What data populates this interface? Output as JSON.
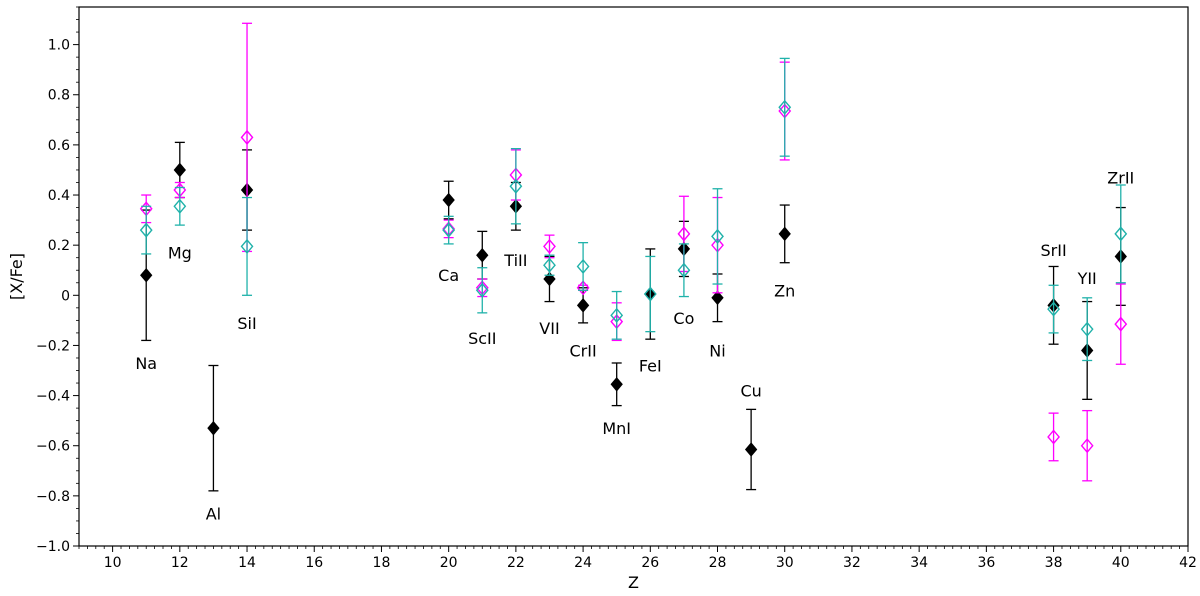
{
  "chart_data": {
    "type": "scatter",
    "title": "",
    "xlabel": "Z",
    "ylabel": "[X/Fe]",
    "xlim": [
      9,
      42
    ],
    "ylim": [
      -1.0,
      1.15
    ],
    "xticks": [
      10,
      12,
      14,
      16,
      18,
      20,
      22,
      24,
      26,
      28,
      30,
      32,
      34,
      36,
      38,
      40,
      42
    ],
    "yticks": [
      -1.0,
      -0.8,
      -0.6,
      -0.4,
      -0.2,
      0,
      0.2,
      0.4,
      0.6,
      0.8,
      1.0
    ],
    "ytick_labels": [
      "−1.0",
      "−0.8",
      "−0.6",
      "−0.4",
      "−0.2",
      "0",
      "0.2",
      "0.4",
      "0.6",
      "0.8",
      "1.0"
    ],
    "grid": false,
    "series": [
      {
        "marker": "filled-diamond",
        "color": "#000000",
        "points": [
          {
            "x": 11,
            "y": 0.08,
            "err": 0.26
          },
          {
            "x": 12,
            "y": 0.5,
            "err": 0.11
          },
          {
            "x": 13,
            "y": -0.53,
            "err": 0.25
          },
          {
            "x": 14,
            "y": 0.42,
            "err": 0.16
          },
          {
            "x": 20,
            "y": 0.38,
            "err": 0.075
          },
          {
            "x": 21,
            "y": 0.16,
            "err": 0.095
          },
          {
            "x": 22,
            "y": 0.355,
            "err": 0.095
          },
          {
            "x": 23,
            "y": 0.065,
            "err": 0.09
          },
          {
            "x": 24,
            "y": -0.04,
            "err": 0.07
          },
          {
            "x": 25,
            "y": -0.355,
            "err": 0.085
          },
          {
            "x": 26,
            "y": 0.005,
            "err": 0.18
          },
          {
            "x": 27,
            "y": 0.185,
            "err": 0.11
          },
          {
            "x": 28,
            "y": -0.01,
            "err": 0.095
          },
          {
            "x": 29,
            "y": -0.615,
            "err": 0.16
          },
          {
            "x": 30,
            "y": 0.245,
            "err": 0.115
          },
          {
            "x": 38,
            "y": -0.04,
            "err": 0.155
          },
          {
            "x": 39,
            "y": -0.22,
            "err": 0.195
          },
          {
            "x": 40,
            "y": 0.155,
            "err": 0.195
          }
        ]
      },
      {
        "marker": "open-diamond",
        "color": "#ff00ff",
        "points": [
          {
            "x": 11,
            "y": 0.345,
            "err": 0.055
          },
          {
            "x": 12,
            "y": 0.42,
            "err": 0.03
          },
          {
            "x": 14,
            "y": 0.63,
            "err": 0.455
          },
          {
            "x": 20,
            "y": 0.265,
            "err": 0.035
          },
          {
            "x": 21,
            "y": 0.03,
            "err": 0.035
          },
          {
            "x": 22,
            "y": 0.48,
            "err": 0.1
          },
          {
            "x": 23,
            "y": 0.195,
            "err": 0.045
          },
          {
            "x": 24,
            "y": 0.03,
            "err": 0.01
          },
          {
            "x": 25,
            "y": -0.105,
            "err": 0.075
          },
          {
            "x": 27,
            "y": 0.245,
            "err": 0.15
          },
          {
            "x": 28,
            "y": 0.2,
            "err": 0.19
          },
          {
            "x": 30,
            "y": 0.735,
            "err": 0.195
          },
          {
            "x": 38,
            "y": -0.565,
            "err": 0.095
          },
          {
            "x": 39,
            "y": -0.6,
            "err": 0.14
          },
          {
            "x": 40,
            "y": -0.115,
            "err": 0.16
          }
        ]
      },
      {
        "marker": "open-diamond",
        "color": "#20b2aa",
        "points": [
          {
            "x": 11,
            "y": 0.26,
            "err": 0.095
          },
          {
            "x": 12,
            "y": 0.355,
            "err": 0.075
          },
          {
            "x": 14,
            "y": 0.195,
            "err": 0.195
          },
          {
            "x": 20,
            "y": 0.26,
            "err": 0.055
          },
          {
            "x": 21,
            "y": 0.02,
            "err": 0.09
          },
          {
            "x": 22,
            "y": 0.435,
            "err": 0.15
          },
          {
            "x": 23,
            "y": 0.12,
            "err": 0.04
          },
          {
            "x": 24,
            "y": 0.115,
            "err": 0.095
          },
          {
            "x": 25,
            "y": -0.08,
            "err": 0.095
          },
          {
            "x": 26,
            "y": 0.005,
            "err": 0.15
          },
          {
            "x": 27,
            "y": 0.1,
            "err": 0.105
          },
          {
            "x": 28,
            "y": 0.235,
            "err": 0.19
          },
          {
            "x": 30,
            "y": 0.75,
            "err": 0.195
          },
          {
            "x": 38,
            "y": -0.055,
            "err": 0.095
          },
          {
            "x": 39,
            "y": -0.135,
            "err": 0.125
          },
          {
            "x": 40,
            "y": 0.245,
            "err": 0.195
          }
        ]
      }
    ],
    "annotations": [
      {
        "text": "Na",
        "x": 11,
        "y": -0.27
      },
      {
        "text": "Mg",
        "x": 12,
        "y": 0.17
      },
      {
        "text": "Al",
        "x": 13,
        "y": -0.87
      },
      {
        "text": "SiI",
        "x": 14,
        "y": -0.11
      },
      {
        "text": "Ca",
        "x": 20,
        "y": 0.08
      },
      {
        "text": "ScII",
        "x": 21,
        "y": -0.17
      },
      {
        "text": "TiII",
        "x": 22,
        "y": 0.14
      },
      {
        "text": "VII",
        "x": 23,
        "y": -0.13
      },
      {
        "text": "CrII",
        "x": 24,
        "y": -0.22
      },
      {
        "text": "MnI",
        "x": 25,
        "y": -0.53
      },
      {
        "text": "FeI",
        "x": 26,
        "y": -0.28
      },
      {
        "text": "Co",
        "x": 27,
        "y": -0.09
      },
      {
        "text": "Ni",
        "x": 28,
        "y": -0.22
      },
      {
        "text": "Cu",
        "x": 29,
        "y": -0.38
      },
      {
        "text": "Zn",
        "x": 30,
        "y": 0.02
      },
      {
        "text": "SrII",
        "x": 38,
        "y": 0.18
      },
      {
        "text": "YII",
        "x": 39,
        "y": 0.07
      },
      {
        "text": "ZrII",
        "x": 40,
        "y": 0.47
      }
    ]
  }
}
